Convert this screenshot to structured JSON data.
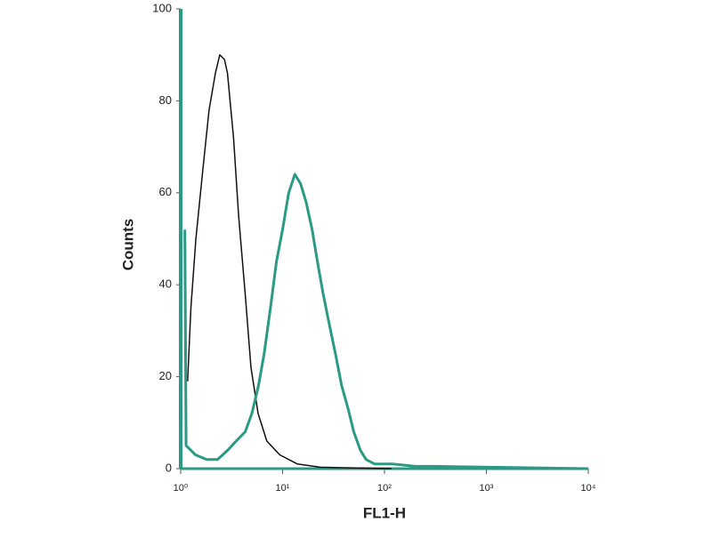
{
  "chart_data": {
    "type": "line",
    "xscale": "log",
    "xlabel": "FL1-H",
    "ylabel": "Counts",
    "xlim": [
      1,
      10000
    ],
    "ylim": [
      0,
      100
    ],
    "xticks": [
      {
        "value": 1,
        "label": "10⁰"
      },
      {
        "value": 10,
        "label": "10¹"
      },
      {
        "value": 100,
        "label": "10²"
      },
      {
        "value": 1000,
        "label": "10³"
      },
      {
        "value": 10000,
        "label": "10⁴"
      }
    ],
    "yticks": [
      0,
      20,
      40,
      60,
      80,
      100
    ],
    "axis_color": "#2a9a84",
    "series": [
      {
        "color": "#111111",
        "width": 1.5,
        "x": [
          1.17,
          1.26,
          1.41,
          1.65,
          1.9,
          2.19,
          2.42,
          2.69,
          2.88,
          3.3,
          3.7,
          4.3,
          4.9,
          5.75,
          7.0,
          9.4,
          14,
          23.4,
          117
        ],
        "values": [
          19,
          35,
          50,
          65,
          78,
          86,
          90,
          89,
          86,
          72,
          55,
          38,
          22,
          12,
          6,
          3,
          1,
          0.3,
          0
        ]
      },
      {
        "color": "#2a9a84",
        "width": 3,
        "x": [
          1.1,
          1.13,
          1.4,
          1.8,
          2.3,
          2.9,
          3.5,
          4.3,
          5.0,
          5.8,
          6.6,
          7.6,
          8.7,
          10,
          11.5,
          13.2,
          15,
          17,
          19.5,
          22,
          25,
          29,
          33,
          38,
          44,
          50,
          58,
          66,
          80,
          120,
          200,
          300,
          10000
        ],
        "values": [
          52,
          5,
          3,
          2,
          2,
          4,
          6,
          8,
          12,
          18,
          25,
          35,
          45,
          52,
          60,
          64,
          62,
          58,
          52,
          45,
          38,
          31,
          25,
          18,
          13,
          8,
          4,
          2,
          1,
          1,
          0.5,
          0.5,
          0
        ]
      }
    ]
  }
}
